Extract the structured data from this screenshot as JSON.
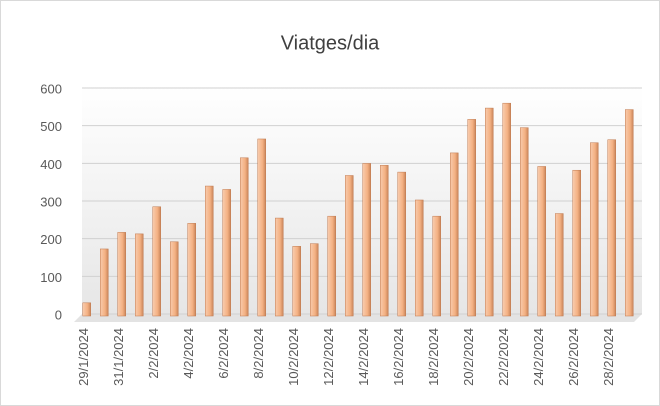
{
  "chart_data": {
    "type": "bar",
    "title": "Viatges/dia",
    "categories": [
      "29/1/2024",
      null,
      "31/1/2024",
      null,
      "2/2/2024",
      null,
      "4/2/2024",
      null,
      "6/2/2024",
      null,
      "8/2/2024",
      null,
      "10/2/2024",
      null,
      "12/2/2024",
      null,
      "14/2/2024",
      null,
      "16/2/2024",
      null,
      "18/2/2024",
      null,
      "20/2/2024",
      null,
      "22/2/2024",
      null,
      "24/2/2024",
      null,
      "26/2/2024",
      null,
      "28/2/2024",
      null
    ],
    "values": [
      35,
      178,
      222,
      218,
      290,
      197,
      246,
      345,
      336,
      420,
      470,
      260,
      185,
      192,
      265,
      373,
      405,
      400,
      382,
      308,
      265,
      433,
      522,
      552,
      565,
      500,
      397,
      272,
      387,
      460,
      468,
      548
    ],
    "color": "#f4b183",
    "ylim": [
      0,
      600
    ],
    "yticks": [
      0,
      100,
      200,
      300,
      400,
      500,
      600
    ],
    "grid": true
  }
}
